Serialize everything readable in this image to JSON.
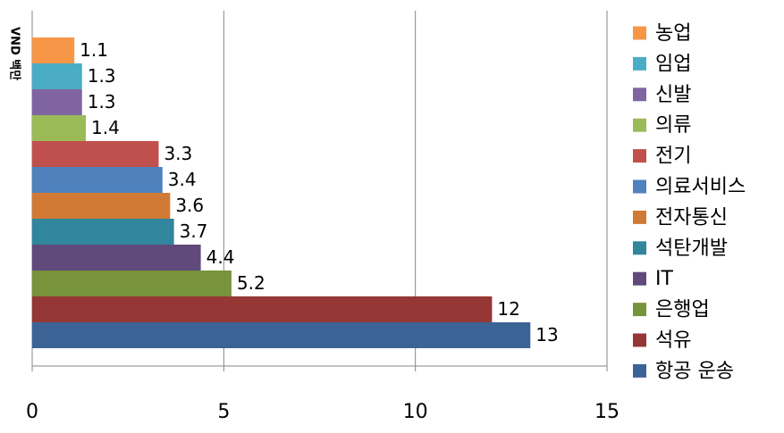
{
  "chart_data": {
    "type": "bar",
    "orientation": "horizontal",
    "y_label": "VND 백만",
    "categories": [
      null
    ],
    "series": [
      {
        "name": "농업",
        "color": "#f79646",
        "values": [
          1.1
        ]
      },
      {
        "name": "임업",
        "color": "#4bacc6",
        "values": [
          1.3
        ]
      },
      {
        "name": "신발",
        "color": "#8064a2",
        "values": [
          1.3
        ]
      },
      {
        "name": "의류",
        "color": "#9bbb59",
        "values": [
          1.4
        ]
      },
      {
        "name": "전기",
        "color": "#c0504d",
        "values": [
          3.3
        ]
      },
      {
        "name": "의료서비스",
        "color": "#4f81bd",
        "values": [
          3.4
        ]
      },
      {
        "name": "전자통신",
        "color": "#d07a36",
        "values": [
          3.6
        ]
      },
      {
        "name": "석탄개발",
        "color": "#31859c",
        "values": [
          3.7
        ]
      },
      {
        "name": "IT",
        "color": "#604a7b",
        "values": [
          4.4
        ]
      },
      {
        "name": "은행업",
        "color": "#77933c",
        "values": [
          5.2
        ]
      },
      {
        "name": "석유",
        "color": "#953735",
        "values": [
          12
        ]
      },
      {
        "name": "항공 운송",
        "color": "#3c6396",
        "values": [
          13
        ]
      }
    ],
    "xlim": [
      0,
      15
    ],
    "xticks": [
      0,
      5,
      10,
      15
    ],
    "grid": true,
    "legend": "right"
  }
}
